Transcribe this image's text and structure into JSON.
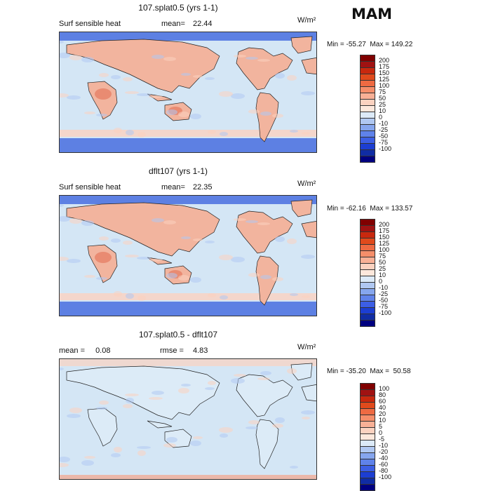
{
  "season": "MAM",
  "units": "W/m²",
  "colors": {
    "ocean": "#d4e6f5",
    "polar": "#5d80e3",
    "land_warm": "#f2b49e",
    "land_hot": "#e98b72",
    "coast": "#222222"
  },
  "panels": [
    {
      "title": "107.splat0.5 (yrs 1-1)",
      "left_label": "Surf sensible heat",
      "stat_label": "mean=",
      "stat_value": "22.44",
      "units": "W/m²",
      "minmax": "Min = -55.27  Max = 149.22",
      "colorbar": {
        "labels": [
          "200",
          "175",
          "150",
          "125",
          "100",
          "75",
          "50",
          "25",
          "10",
          "0",
          "-10",
          "-25",
          "-50",
          "-75",
          "-100"
        ],
        "colors": [
          "#800000",
          "#a01212",
          "#c8280e",
          "#e04a1c",
          "#ee6a42",
          "#f58e6a",
          "#f8b096",
          "#fbd2c0",
          "#fde8dc",
          "#dceaf8",
          "#b0c8f2",
          "#86a6ee",
          "#5f82ea",
          "#3c5ee4",
          "#1c3ed2",
          "#102ca4",
          "#000080"
        ]
      }
    },
    {
      "title": "dflt107 (yrs 1-1)",
      "left_label": "Surf sensible heat",
      "stat_label": "mean=",
      "stat_value": "22.35",
      "units": "W/m²",
      "minmax": "Min = -62.16  Max = 133.57",
      "colorbar": {
        "labels": [
          "200",
          "175",
          "150",
          "125",
          "100",
          "75",
          "50",
          "25",
          "10",
          "0",
          "-10",
          "-25",
          "-50",
          "-75",
          "-100"
        ],
        "colors": [
          "#800000",
          "#a01212",
          "#c8280e",
          "#e04a1c",
          "#ee6a42",
          "#f58e6a",
          "#f8b096",
          "#fbd2c0",
          "#fde8dc",
          "#dceaf8",
          "#b0c8f2",
          "#86a6ee",
          "#5f82ea",
          "#3c5ee4",
          "#1c3ed2",
          "#102ca4",
          "#000080"
        ]
      }
    },
    {
      "title": "107.splat0.5 - dflt107",
      "left_label": "mean =",
      "left_value": "0.08",
      "stat_label": "rmse =",
      "stat_value": "4.83",
      "units": "W/m²",
      "minmax": "Min = -35.20  Max =  50.58",
      "colorbar": {
        "labels": [
          "100",
          "80",
          "60",
          "40",
          "20",
          "10",
          "5",
          "0",
          "-5",
          "-10",
          "-20",
          "-40",
          "-60",
          "-80",
          "-100"
        ],
        "colors": [
          "#800000",
          "#a01212",
          "#c8280e",
          "#e04a1c",
          "#ee6a42",
          "#f58e6a",
          "#f8b096",
          "#fbd2c0",
          "#fde8dc",
          "#dceaf8",
          "#b0c8f2",
          "#86a6ee",
          "#5f82ea",
          "#3c5ee4",
          "#1c3ed2",
          "#102ca4",
          "#000080"
        ]
      }
    }
  ]
}
